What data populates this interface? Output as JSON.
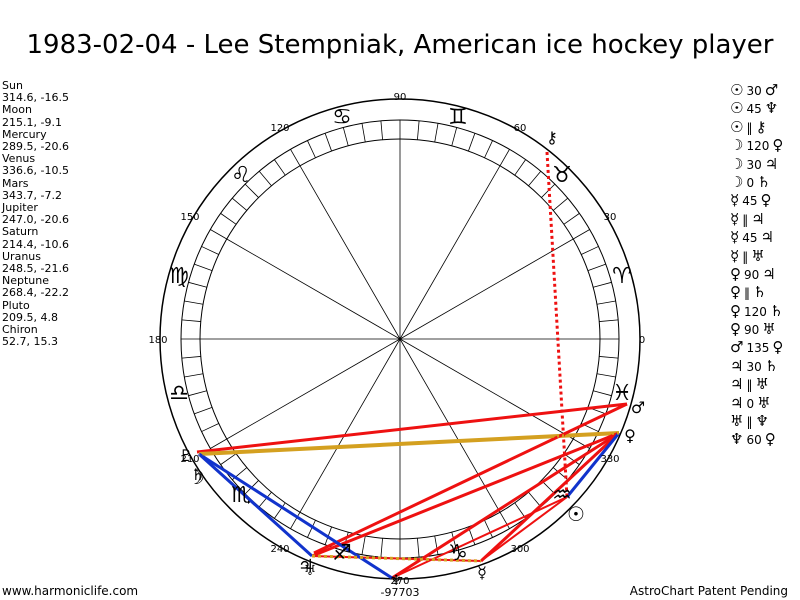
{
  "title": "1983-02-04 - Lee Stempniak, American ice hockey player",
  "planets": [
    {
      "name": "Sun",
      "coords": "314.6, -16.5"
    },
    {
      "name": "Moon",
      "coords": "215.1, -9.1"
    },
    {
      "name": "Mercury",
      "coords": "289.5, -20.6"
    },
    {
      "name": "Venus",
      "coords": "336.6, -10.5"
    },
    {
      "name": "Mars",
      "coords": "343.7, -7.2"
    },
    {
      "name": "Jupiter",
      "coords": "247.0, -20.6"
    },
    {
      "name": "Saturn",
      "coords": "214.4, -10.6"
    },
    {
      "name": "Uranus",
      "coords": "248.5, -21.6"
    },
    {
      "name": "Neptune",
      "coords": "268.4, -22.2"
    },
    {
      "name": "Pluto",
      "coords": "209.5, 4.8"
    },
    {
      "name": "Chiron",
      "coords": "52.7, 15.3"
    }
  ],
  "aspects": [
    {
      "a": "☉",
      "v": "30",
      "b": "♂"
    },
    {
      "a": "☉",
      "v": "45",
      "b": "♆"
    },
    {
      "a": "☉",
      "v": "‖",
      "b": "⚷"
    },
    {
      "a": "☽",
      "v": "120",
      "b": "♀"
    },
    {
      "a": "☽",
      "v": "30",
      "b": "♃"
    },
    {
      "a": "☽",
      "v": "0",
      "b": "♄"
    },
    {
      "a": "☿",
      "v": "45",
      "b": "♀"
    },
    {
      "a": "☿",
      "v": "‖",
      "b": "♃"
    },
    {
      "a": "☿",
      "v": "45",
      "b": "♃"
    },
    {
      "a": "☿",
      "v": "‖",
      "b": "♅"
    },
    {
      "a": "♀",
      "v": "90",
      "b": "♃"
    },
    {
      "a": "♀",
      "v": "‖",
      "b": "♄"
    },
    {
      "a": "♀",
      "v": "120",
      "b": "♄"
    },
    {
      "a": "♀",
      "v": "90",
      "b": "♅"
    },
    {
      "a": "♂",
      "v": "135",
      "b": "♀"
    },
    {
      "a": "♃",
      "v": "30",
      "b": "♄"
    },
    {
      "a": "♃",
      "v": "‖",
      "b": "♅"
    },
    {
      "a": "♃",
      "v": "0",
      "b": "♅"
    },
    {
      "a": "♅",
      "v": "‖",
      "b": "♆"
    },
    {
      "a": "♆",
      "v": "60",
      "b": "♀"
    }
  ],
  "wheel": {
    "degree_labels": [
      "0",
      "30",
      "60",
      "90",
      "120",
      "150",
      "180",
      "210",
      "240",
      "270",
      "300",
      "330"
    ],
    "bottom_value": "-97703",
    "signs": [
      "♈",
      "♉",
      "♊",
      "♋",
      "♌",
      "♍",
      "♎",
      "♏",
      "♐",
      "♑",
      "♒",
      "♓"
    ],
    "planet_glyphs": [
      "☉",
      "☽",
      "☿",
      "♀",
      "♂",
      "♃",
      "♄",
      "♅",
      "♆",
      "♇",
      "⚷"
    ]
  },
  "footer": {
    "left": "www.harmoniclife.com",
    "right": "AstroChart Patent Pending"
  },
  "colors": {
    "red": "#ee1111",
    "blue": "#1133cc",
    "gold": "#d4a020"
  }
}
